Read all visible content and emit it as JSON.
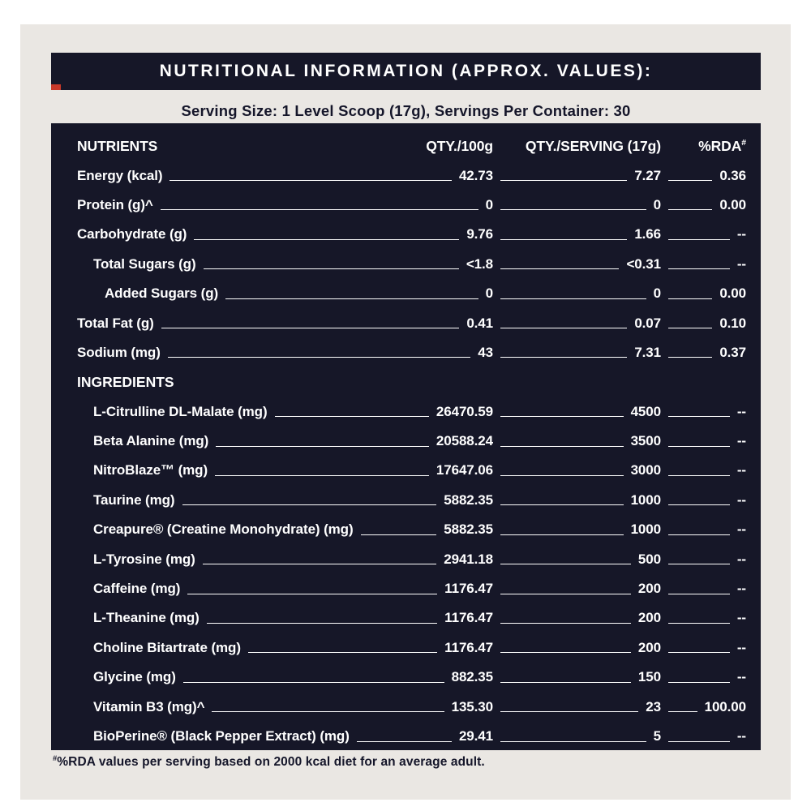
{
  "page": {
    "title": "NUTRITIONAL INFORMATION (APPROX. VALUES):",
    "serving_line": "Serving Size: 1 Level Scoop (17g), Servings Per Container: 30",
    "footnote_sup": "#",
    "footnote_text": "%RDA values per serving based on 2000 kcal diet for an average adult.",
    "colors": {
      "panel": "#161728",
      "accent_red": "#c9392a",
      "background": "#eae7e3",
      "text_light": "#ffffff",
      "text_dark": "#15162a"
    }
  },
  "table": {
    "headers": {
      "nutrients": "NUTRIENTS",
      "qty100": "QTY./100g",
      "serving": "QTY./SERVING (17g)",
      "rda": "%RDA",
      "rda_sup": "#"
    },
    "nutrients": [
      {
        "label": "Energy (kcal)",
        "qty100": "42.73",
        "serving": "7.27",
        "rda": "0.36",
        "indent": 0
      },
      {
        "label": "Protein (g)^",
        "qty100": "0",
        "serving": "0",
        "rda": "0.00",
        "indent": 0
      },
      {
        "label": "Carbohydrate (g)",
        "qty100": "9.76",
        "serving": "1.66",
        "rda": "--",
        "indent": 0
      },
      {
        "label": "Total Sugars (g)",
        "qty100": "<1.8",
        "serving": "<0.31",
        "rda": "--",
        "indent": 1
      },
      {
        "label": "Added Sugars (g)",
        "qty100": "0",
        "serving": "0",
        "rda": "0.00",
        "indent": 2
      },
      {
        "label": "Total Fat (g)",
        "qty100": "0.41",
        "serving": "0.07",
        "rda": "0.10",
        "indent": 0
      },
      {
        "label": "Sodium (mg)",
        "qty100": "43",
        "serving": "7.31",
        "rda": "0.37",
        "indent": 0
      }
    ],
    "ingredients_header": "INGREDIENTS",
    "ingredients": [
      {
        "label": "L-Citrulline DL-Malate (mg)",
        "qty100": "26470.59",
        "serving": "4500",
        "rda": "--"
      },
      {
        "label": "Beta Alanine (mg)",
        "qty100": "20588.24",
        "serving": "3500",
        "rda": "--"
      },
      {
        "label": "NitroBlaze™ (mg)",
        "qty100": "17647.06",
        "serving": "3000",
        "rda": "--"
      },
      {
        "label": "Taurine (mg)",
        "qty100": "5882.35",
        "serving": "1000",
        "rda": "--"
      },
      {
        "label": "Creapure® (Creatine Monohydrate) (mg)",
        "qty100": "5882.35",
        "serving": "1000",
        "rda": "--"
      },
      {
        "label": "L-Tyrosine (mg)",
        "qty100": "2941.18",
        "serving": "500",
        "rda": "--"
      },
      {
        "label": "Caffeine (mg)",
        "qty100": "1176.47",
        "serving": "200",
        "rda": "--"
      },
      {
        "label": "L-Theanine (mg)",
        "qty100": "1176.47",
        "serving": "200",
        "rda": "--"
      },
      {
        "label": "Choline Bitartrate (mg)",
        "qty100": "1176.47",
        "serving": "200",
        "rda": "--"
      },
      {
        "label": "Glycine (mg)",
        "qty100": "882.35",
        "serving": "150",
        "rda": "--"
      },
      {
        "label": "Vitamin B3 (mg)^",
        "qty100": "135.30",
        "serving": "23",
        "rda": "100.00"
      },
      {
        "label": "BioPerine® (Black Pepper Extract) (mg)",
        "qty100": "29.41",
        "serving": "5",
        "rda": "--"
      }
    ]
  }
}
